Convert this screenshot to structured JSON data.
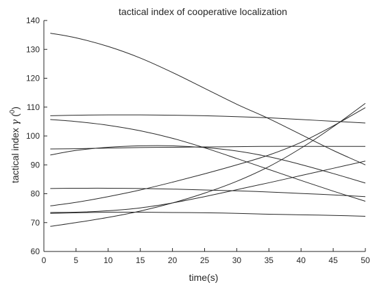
{
  "chart_data": {
    "type": "line",
    "title": "tactical index of cooperative localization",
    "xlabel": "time(s)",
    "ylabel": "tactical index γ (0)",
    "ylabel_parts": {
      "main": "tactical index ",
      "symbol": "γ",
      "open": " (",
      "sup": "0",
      "close": ")"
    },
    "xlim": [
      0,
      50
    ],
    "ylim": [
      60,
      140
    ],
    "xticks": [
      "0",
      "5",
      "10",
      "15",
      "20",
      "25",
      "30",
      "35",
      "40",
      "45",
      "50"
    ],
    "yticks": [
      "60",
      "70",
      "80",
      "90",
      "100",
      "110",
      "120",
      "130",
      "140"
    ],
    "grid": false,
    "line_color": "#262626",
    "series": [
      {
        "x": [
          1,
          5,
          10,
          15,
          20,
          25,
          30,
          35,
          40,
          45,
          50
        ],
        "y": [
          135.6,
          134.0,
          131.0,
          127.0,
          122.0,
          116.5,
          111.0,
          106.0,
          100.5,
          95.0,
          90.0
        ]
      },
      {
        "x": [
          1,
          5,
          10,
          15,
          20,
          25,
          30,
          35,
          40,
          45,
          50
        ],
        "y": [
          107.0,
          107.2,
          107.3,
          107.3,
          107.2,
          107.0,
          106.7,
          106.3,
          105.7,
          105.1,
          104.5
        ]
      },
      {
        "x": [
          1,
          5,
          10,
          15,
          20,
          25,
          30,
          35,
          40,
          45,
          50
        ],
        "y": [
          105.7,
          105.0,
          103.7,
          101.8,
          99.2,
          95.9,
          92.2,
          88.4,
          84.6,
          80.9,
          77.4
        ]
      },
      {
        "x": [
          1,
          5,
          10,
          15,
          20,
          25,
          30,
          35,
          40,
          45,
          50
        ],
        "y": [
          95.5,
          95.6,
          95.8,
          96.0,
          96.1,
          96.2,
          96.3,
          96.4,
          96.4,
          96.4,
          96.4
        ]
      },
      {
        "x": [
          1,
          5,
          10,
          15,
          20,
          25,
          30,
          35,
          40,
          45,
          50
        ],
        "y": [
          93.4,
          95.0,
          96.1,
          96.6,
          96.6,
          96.0,
          94.8,
          92.8,
          90.1,
          87.0,
          83.7
        ]
      },
      {
        "x": [
          1,
          5,
          10,
          15,
          20,
          25,
          30,
          35,
          40,
          45,
          50
        ],
        "y": [
          81.8,
          81.9,
          81.9,
          81.8,
          81.6,
          81.3,
          81.0,
          80.6,
          80.1,
          79.6,
          79.0
        ]
      },
      {
        "x": [
          1,
          5,
          10,
          15,
          20,
          25,
          30,
          35,
          40,
          45,
          50
        ],
        "y": [
          75.8,
          77.0,
          79.0,
          81.3,
          84.0,
          86.9,
          90.0,
          93.4,
          97.8,
          103.5,
          109.8
        ]
      },
      {
        "x": [
          1,
          5,
          10,
          15,
          20,
          25,
          30,
          35,
          40,
          45,
          50
        ],
        "y": [
          73.5,
          73.6,
          74.1,
          75.1,
          76.8,
          79.0,
          81.4,
          83.8,
          86.3,
          88.8,
          91.3
        ]
      },
      {
        "x": [
          1,
          5,
          10,
          15,
          20,
          25,
          30,
          35,
          40,
          45,
          50
        ],
        "y": [
          73.2,
          73.4,
          73.6,
          73.6,
          73.5,
          73.4,
          73.2,
          72.9,
          72.7,
          72.5,
          72.2
        ]
      },
      {
        "x": [
          1,
          5,
          10,
          15,
          20,
          25,
          30,
          35,
          40,
          45,
          50
        ],
        "y": [
          68.7,
          70.0,
          71.8,
          74.0,
          76.8,
          80.2,
          84.3,
          89.4,
          95.8,
          103.2,
          111.3
        ]
      }
    ]
  }
}
